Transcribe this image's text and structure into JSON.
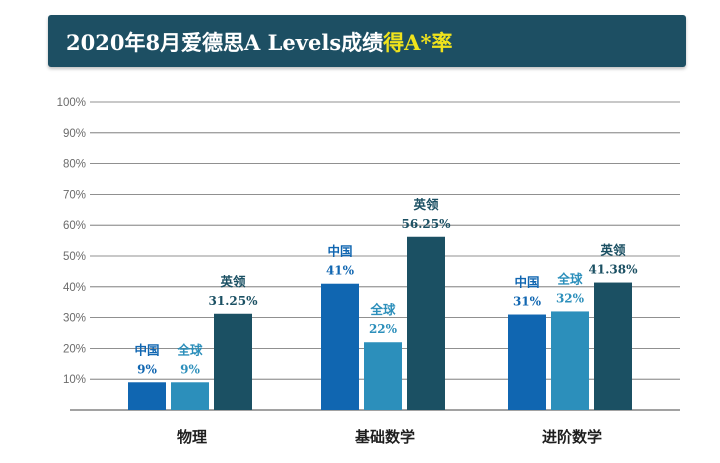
{
  "header": {
    "title": "2020年8月爱德思A Levels成绩",
    "title_highlight": "得A*率"
  },
  "colors": {
    "banner": "#1d4f63",
    "highlight": "#f0e31c",
    "china": "#1066b1",
    "global": "#2c8fbb",
    "uk": "#1b5063"
  },
  "chart_data": {
    "type": "bar",
    "ylim": [
      0,
      100
    ],
    "yticks": [
      "10%",
      "20%",
      "30%",
      "40%",
      "50%",
      "60%",
      "70%",
      "80%",
      "90%",
      "100%"
    ],
    "grid": true,
    "categories": [
      "物理",
      "基础数学",
      "进阶数学"
    ],
    "groups": [
      {
        "category": "物理",
        "bars": [
          {
            "name": "中国",
            "value": 9,
            "label": "9%"
          },
          {
            "name": "全球",
            "value": 9,
            "label": "9%"
          },
          {
            "name": "英领",
            "value": 31.25,
            "label": "31.25%"
          }
        ]
      },
      {
        "category": "基础数学",
        "bars": [
          {
            "name": "中国",
            "value": 41,
            "label": "41%"
          },
          {
            "name": "全球",
            "value": 22,
            "label": "22%"
          },
          {
            "name": "英领",
            "value": 56.25,
            "label": "56.25%"
          }
        ]
      },
      {
        "category": "进阶数学",
        "bars": [
          {
            "name": "中国",
            "value": 31,
            "label": "31%"
          },
          {
            "name": "全球",
            "value": 32,
            "label": "32%"
          },
          {
            "name": "英领",
            "value": 41.38,
            "label": "41.38%"
          }
        ]
      }
    ]
  }
}
